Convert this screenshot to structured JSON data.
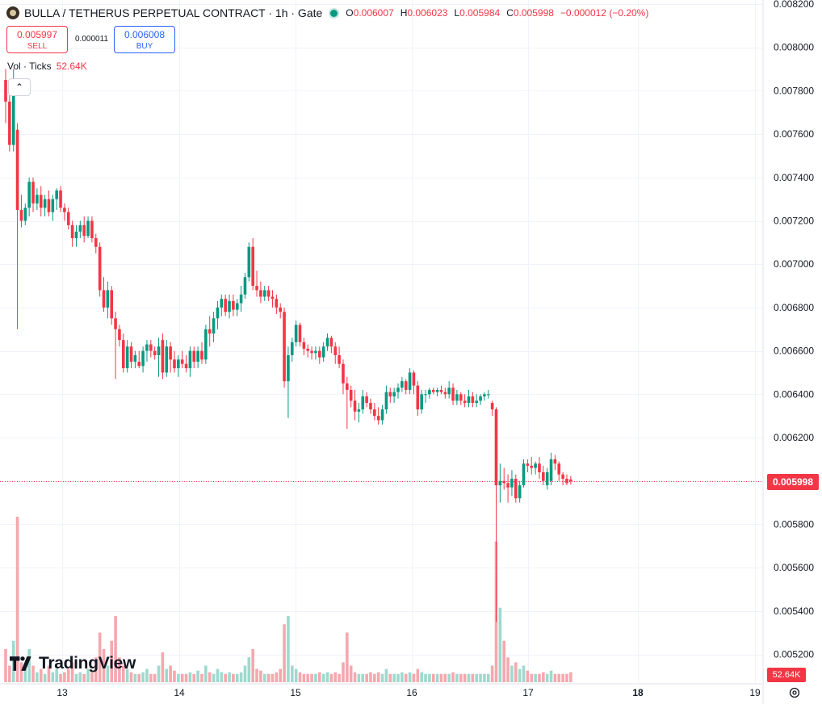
{
  "header": {
    "title": "BULLA / TETHERUS PERPETUAL CONTRACT · 1h · Gate",
    "ohlc": [
      {
        "key": "O",
        "value": "0.006007"
      },
      {
        "key": "H",
        "value": "0.006023"
      },
      {
        "key": "L",
        "value": "0.005984"
      },
      {
        "key": "C",
        "value": "0.005998"
      },
      {
        "key": "",
        "value": "−0.000012 (−0.20%)"
      }
    ]
  },
  "trade": {
    "sell_price": "0.005997",
    "sell_label": "SELL",
    "spread": "0.000011",
    "buy_price": "0.006008",
    "buy_label": "BUY"
  },
  "volume_legend": {
    "label": "Vol · Ticks",
    "value": "52.64K"
  },
  "branding": {
    "name": "TradingView"
  },
  "price_scale": {
    "last_price": "0.005998",
    "volume_last": "52.64K"
  },
  "colors": {
    "up": "#089981",
    "down": "#f23645",
    "vol_up": "#9ed9ce",
    "vol_down": "#f5a8ae",
    "grid": "#f0f3fa"
  },
  "chart_data": {
    "type": "candlestick",
    "x_labels": [
      "13",
      "14",
      "15",
      "16",
      "17",
      "18",
      "19"
    ],
    "y_ticks": [
      "0.008200",
      "0.008000",
      "0.007800",
      "0.007600",
      "0.007400",
      "0.007200",
      "0.007000",
      "0.006800",
      "0.006600",
      "0.006400",
      "0.006200",
      "0.006000",
      "0.005800",
      "0.005600",
      "0.005400",
      "0.005200"
    ],
    "ylim": [
      0.00516,
      0.0082
    ],
    "last_price": 0.005998,
    "grid": true,
    "candles": [
      {
        "o": 0.00785,
        "h": 0.0079,
        "l": 0.00765,
        "c": 0.00775,
        "v": 0.2
      },
      {
        "o": 0.00775,
        "h": 0.00782,
        "l": 0.00752,
        "c": 0.00755,
        "v": 0.1
      },
      {
        "o": 0.00755,
        "h": 0.0079,
        "l": 0.00752,
        "c": 0.00781,
        "v": 0.25
      },
      {
        "o": 0.00762,
        "h": 0.00765,
        "l": 0.0067,
        "c": 0.00725,
        "v": 1.0
      },
      {
        "o": 0.00725,
        "h": 0.00732,
        "l": 0.00717,
        "c": 0.0072,
        "v": 0.12
      },
      {
        "o": 0.0072,
        "h": 0.00728,
        "l": 0.00718,
        "c": 0.00726,
        "v": 0.08
      },
      {
        "o": 0.00726,
        "h": 0.0074,
        "l": 0.00722,
        "c": 0.00738,
        "v": 0.2
      },
      {
        "o": 0.00738,
        "h": 0.0074,
        "l": 0.00724,
        "c": 0.00728,
        "v": 0.1
      },
      {
        "o": 0.00728,
        "h": 0.00735,
        "l": 0.00725,
        "c": 0.00732,
        "v": 0.06
      },
      {
        "o": 0.00732,
        "h": 0.00736,
        "l": 0.00722,
        "c": 0.00726,
        "v": 0.08
      },
      {
        "o": 0.00726,
        "h": 0.00732,
        "l": 0.00722,
        "c": 0.0073,
        "v": 0.05
      },
      {
        "o": 0.0073,
        "h": 0.00734,
        "l": 0.00722,
        "c": 0.00724,
        "v": 0.1
      },
      {
        "o": 0.00724,
        "h": 0.00732,
        "l": 0.0072,
        "c": 0.0073,
        "v": 0.06
      },
      {
        "o": 0.0073,
        "h": 0.00735,
        "l": 0.00725,
        "c": 0.00734,
        "v": 0.08
      },
      {
        "o": 0.00734,
        "h": 0.00736,
        "l": 0.00724,
        "c": 0.00726,
        "v": 0.05
      },
      {
        "o": 0.00726,
        "h": 0.00728,
        "l": 0.0072,
        "c": 0.00724,
        "v": 0.06
      },
      {
        "o": 0.00724,
        "h": 0.00726,
        "l": 0.00716,
        "c": 0.00718,
        "v": 0.08
      },
      {
        "o": 0.00718,
        "h": 0.0072,
        "l": 0.00708,
        "c": 0.00712,
        "v": 0.12
      },
      {
        "o": 0.00712,
        "h": 0.00718,
        "l": 0.00708,
        "c": 0.00715,
        "v": 0.05
      },
      {
        "o": 0.00715,
        "h": 0.0072,
        "l": 0.00712,
        "c": 0.00718,
        "v": 0.06
      },
      {
        "o": 0.00718,
        "h": 0.00722,
        "l": 0.0071,
        "c": 0.00713,
        "v": 0.05
      },
      {
        "o": 0.00713,
        "h": 0.00722,
        "l": 0.00712,
        "c": 0.0072,
        "v": 0.08
      },
      {
        "o": 0.0072,
        "h": 0.00722,
        "l": 0.0071,
        "c": 0.00712,
        "v": 0.06
      },
      {
        "o": 0.00712,
        "h": 0.00714,
        "l": 0.00705,
        "c": 0.00708,
        "v": 0.15
      },
      {
        "o": 0.00708,
        "h": 0.0071,
        "l": 0.00685,
        "c": 0.00688,
        "v": 0.3
      },
      {
        "o": 0.00688,
        "h": 0.00694,
        "l": 0.00678,
        "c": 0.0068,
        "v": 0.2
      },
      {
        "o": 0.0068,
        "h": 0.00692,
        "l": 0.00675,
        "c": 0.00688,
        "v": 0.1
      },
      {
        "o": 0.00688,
        "h": 0.0069,
        "l": 0.00672,
        "c": 0.00675,
        "v": 0.25
      },
      {
        "o": 0.00675,
        "h": 0.00678,
        "l": 0.00647,
        "c": 0.0067,
        "v": 0.4
      },
      {
        "o": 0.0067,
        "h": 0.00672,
        "l": 0.00662,
        "c": 0.00665,
        "v": 0.15
      },
      {
        "o": 0.00665,
        "h": 0.00668,
        "l": 0.0065,
        "c": 0.00652,
        "v": 0.1
      },
      {
        "o": 0.00652,
        "h": 0.00665,
        "l": 0.0065,
        "c": 0.00662,
        "v": 0.08
      },
      {
        "o": 0.00662,
        "h": 0.00664,
        "l": 0.00652,
        "c": 0.00655,
        "v": 0.06
      },
      {
        "o": 0.00655,
        "h": 0.0066,
        "l": 0.00652,
        "c": 0.00658,
        "v": 0.05
      },
      {
        "o": 0.00655,
        "h": 0.0066,
        "l": 0.00652,
        "c": 0.00653,
        "v": 0.05
      },
      {
        "o": 0.00653,
        "h": 0.00662,
        "l": 0.0065,
        "c": 0.0066,
        "v": 0.06
      },
      {
        "o": 0.0066,
        "h": 0.00665,
        "l": 0.00655,
        "c": 0.00663,
        "v": 0.08
      },
      {
        "o": 0.00663,
        "h": 0.00665,
        "l": 0.00657,
        "c": 0.0066,
        "v": 0.05
      },
      {
        "o": 0.0066,
        "h": 0.00662,
        "l": 0.00656,
        "c": 0.00658,
        "v": 0.05
      },
      {
        "o": 0.00658,
        "h": 0.00666,
        "l": 0.00648,
        "c": 0.00662,
        "v": 0.1
      },
      {
        "o": 0.00665,
        "h": 0.00668,
        "l": 0.00647,
        "c": 0.0065,
        "v": 0.18
      },
      {
        "o": 0.0065,
        "h": 0.00665,
        "l": 0.00648,
        "c": 0.00662,
        "v": 0.08
      },
      {
        "o": 0.00662,
        "h": 0.00664,
        "l": 0.0065,
        "c": 0.00656,
        "v": 0.1
      },
      {
        "o": 0.00656,
        "h": 0.0066,
        "l": 0.0065,
        "c": 0.00652,
        "v": 0.07
      },
      {
        "o": 0.00652,
        "h": 0.00658,
        "l": 0.00648,
        "c": 0.00656,
        "v": 0.05
      },
      {
        "o": 0.00656,
        "h": 0.0066,
        "l": 0.00652,
        "c": 0.00654,
        "v": 0.05
      },
      {
        "o": 0.00654,
        "h": 0.00658,
        "l": 0.0065,
        "c": 0.00652,
        "v": 0.05
      },
      {
        "o": 0.00652,
        "h": 0.00662,
        "l": 0.00648,
        "c": 0.0066,
        "v": 0.06
      },
      {
        "o": 0.0066,
        "h": 0.00662,
        "l": 0.00652,
        "c": 0.00655,
        "v": 0.05
      },
      {
        "o": 0.00655,
        "h": 0.00662,
        "l": 0.00652,
        "c": 0.0066,
        "v": 0.07
      },
      {
        "o": 0.0066,
        "h": 0.00664,
        "l": 0.00654,
        "c": 0.00656,
        "v": 0.05
      },
      {
        "o": 0.00656,
        "h": 0.00672,
        "l": 0.00654,
        "c": 0.0067,
        "v": 0.1
      },
      {
        "o": 0.0067,
        "h": 0.00676,
        "l": 0.00662,
        "c": 0.00668,
        "v": 0.06
      },
      {
        "o": 0.00668,
        "h": 0.00678,
        "l": 0.00664,
        "c": 0.00675,
        "v": 0.05
      },
      {
        "o": 0.00675,
        "h": 0.00683,
        "l": 0.0067,
        "c": 0.0068,
        "v": 0.08
      },
      {
        "o": 0.0068,
        "h": 0.00686,
        "l": 0.00676,
        "c": 0.00684,
        "v": 0.06
      },
      {
        "o": 0.00684,
        "h": 0.00686,
        "l": 0.00676,
        "c": 0.00678,
        "v": 0.05
      },
      {
        "o": 0.00678,
        "h": 0.00686,
        "l": 0.00675,
        "c": 0.00683,
        "v": 0.06
      },
      {
        "o": 0.00683,
        "h": 0.00686,
        "l": 0.00676,
        "c": 0.00679,
        "v": 0.05
      },
      {
        "o": 0.00679,
        "h": 0.00684,
        "l": 0.00676,
        "c": 0.00682,
        "v": 0.05
      },
      {
        "o": 0.00682,
        "h": 0.0069,
        "l": 0.00678,
        "c": 0.00686,
        "v": 0.06
      },
      {
        "o": 0.00686,
        "h": 0.00696,
        "l": 0.00684,
        "c": 0.00694,
        "v": 0.1
      },
      {
        "o": 0.00694,
        "h": 0.0071,
        "l": 0.00692,
        "c": 0.00708,
        "v": 0.15
      },
      {
        "o": 0.00708,
        "h": 0.00712,
        "l": 0.00688,
        "c": 0.0069,
        "v": 0.2
      },
      {
        "o": 0.0069,
        "h": 0.00697,
        "l": 0.00685,
        "c": 0.00688,
        "v": 0.08
      },
      {
        "o": 0.00688,
        "h": 0.00692,
        "l": 0.00682,
        "c": 0.00685,
        "v": 0.07
      },
      {
        "o": 0.00685,
        "h": 0.0069,
        "l": 0.00683,
        "c": 0.00688,
        "v": 0.05
      },
      {
        "o": 0.00688,
        "h": 0.0069,
        "l": 0.00683,
        "c": 0.00685,
        "v": 0.05
      },
      {
        "o": 0.00685,
        "h": 0.00688,
        "l": 0.0068,
        "c": 0.00684,
        "v": 0.05
      },
      {
        "o": 0.00684,
        "h": 0.00686,
        "l": 0.00677,
        "c": 0.0068,
        "v": 0.06
      },
      {
        "o": 0.0068,
        "h": 0.00682,
        "l": 0.00675,
        "c": 0.00678,
        "v": 0.08
      },
      {
        "o": 0.00678,
        "h": 0.0068,
        "l": 0.00643,
        "c": 0.00646,
        "v": 0.35
      },
      {
        "o": 0.00646,
        "h": 0.00662,
        "l": 0.00629,
        "c": 0.00658,
        "v": 0.4
      },
      {
        "o": 0.00658,
        "h": 0.00666,
        "l": 0.00655,
        "c": 0.00664,
        "v": 0.1
      },
      {
        "o": 0.00664,
        "h": 0.00674,
        "l": 0.00662,
        "c": 0.00672,
        "v": 0.08
      },
      {
        "o": 0.00672,
        "h": 0.00673,
        "l": 0.00662,
        "c": 0.00664,
        "v": 0.06
      },
      {
        "o": 0.00664,
        "h": 0.00666,
        "l": 0.00658,
        "c": 0.00661,
        "v": 0.05
      },
      {
        "o": 0.00661,
        "h": 0.00663,
        "l": 0.00657,
        "c": 0.0066,
        "v": 0.05
      },
      {
        "o": 0.0066,
        "h": 0.00662,
        "l": 0.00656,
        "c": 0.00659,
        "v": 0.05
      },
      {
        "o": 0.00659,
        "h": 0.00662,
        "l": 0.00656,
        "c": 0.0066,
        "v": 0.05
      },
      {
        "o": 0.0066,
        "h": 0.00662,
        "l": 0.00654,
        "c": 0.00657,
        "v": 0.06
      },
      {
        "o": 0.00657,
        "h": 0.00664,
        "l": 0.00655,
        "c": 0.00662,
        "v": 0.05
      },
      {
        "o": 0.00662,
        "h": 0.00668,
        "l": 0.0066,
        "c": 0.00666,
        "v": 0.06
      },
      {
        "o": 0.00666,
        "h": 0.00667,
        "l": 0.00659,
        "c": 0.00662,
        "v": 0.05
      },
      {
        "o": 0.00662,
        "h": 0.00664,
        "l": 0.00654,
        "c": 0.00658,
        "v": 0.06
      },
      {
        "o": 0.00658,
        "h": 0.00662,
        "l": 0.00652,
        "c": 0.00654,
        "v": 0.05
      },
      {
        "o": 0.00654,
        "h": 0.00656,
        "l": 0.0064,
        "c": 0.00645,
        "v": 0.12
      },
      {
        "o": 0.00645,
        "h": 0.00648,
        "l": 0.00624,
        "c": 0.00642,
        "v": 0.3
      },
      {
        "o": 0.00642,
        "h": 0.00644,
        "l": 0.00634,
        "c": 0.00637,
        "v": 0.1
      },
      {
        "o": 0.00637,
        "h": 0.00642,
        "l": 0.00628,
        "c": 0.00632,
        "v": 0.06
      },
      {
        "o": 0.00632,
        "h": 0.00636,
        "l": 0.00627,
        "c": 0.00633,
        "v": 0.05
      },
      {
        "o": 0.00633,
        "h": 0.00642,
        "l": 0.00631,
        "c": 0.00639,
        "v": 0.05
      },
      {
        "o": 0.00639,
        "h": 0.00641,
        "l": 0.00634,
        "c": 0.00636,
        "v": 0.05
      },
      {
        "o": 0.00636,
        "h": 0.00638,
        "l": 0.00631,
        "c": 0.00633,
        "v": 0.06
      },
      {
        "o": 0.00633,
        "h": 0.00636,
        "l": 0.00628,
        "c": 0.0063,
        "v": 0.05
      },
      {
        "o": 0.0063,
        "h": 0.00634,
        "l": 0.00626,
        "c": 0.00628,
        "v": 0.06
      },
      {
        "o": 0.00628,
        "h": 0.00635,
        "l": 0.00626,
        "c": 0.00633,
        "v": 0.05
      },
      {
        "o": 0.00633,
        "h": 0.00644,
        "l": 0.00631,
        "c": 0.00641,
        "v": 0.08
      },
      {
        "o": 0.00641,
        "h": 0.00643,
        "l": 0.00636,
        "c": 0.00639,
        "v": 0.05
      },
      {
        "o": 0.00639,
        "h": 0.00643,
        "l": 0.00636,
        "c": 0.00641,
        "v": 0.05
      },
      {
        "o": 0.00641,
        "h": 0.00645,
        "l": 0.00638,
        "c": 0.00643,
        "v": 0.05
      },
      {
        "o": 0.00643,
        "h": 0.00648,
        "l": 0.00641,
        "c": 0.00646,
        "v": 0.06
      },
      {
        "o": 0.00646,
        "h": 0.00647,
        "l": 0.0064,
        "c": 0.00642,
        "v": 0.05
      },
      {
        "o": 0.00642,
        "h": 0.00652,
        "l": 0.0064,
        "c": 0.0065,
        "v": 0.06
      },
      {
        "o": 0.0065,
        "h": 0.00651,
        "l": 0.0064,
        "c": 0.00644,
        "v": 0.05
      },
      {
        "o": 0.00644,
        "h": 0.00646,
        "l": 0.0063,
        "c": 0.00633,
        "v": 0.08
      },
      {
        "o": 0.00633,
        "h": 0.00642,
        "l": 0.00631,
        "c": 0.0064,
        "v": 0.06
      },
      {
        "o": 0.0064,
        "h": 0.00642,
        "l": 0.00636,
        "c": 0.0064,
        "v": 0.05
      },
      {
        "o": 0.0064,
        "h": 0.00643,
        "l": 0.00638,
        "c": 0.00642,
        "v": 0.05
      },
      {
        "o": 0.00642,
        "h": 0.00643,
        "l": 0.0064,
        "c": 0.00641,
        "v": 0.05
      },
      {
        "o": 0.00641,
        "h": 0.00643,
        "l": 0.00639,
        "c": 0.00642,
        "v": 0.05
      },
      {
        "o": 0.00642,
        "h": 0.00644,
        "l": 0.0064,
        "c": 0.00641,
        "v": 0.05
      },
      {
        "o": 0.00641,
        "h": 0.00643,
        "l": 0.00638,
        "c": 0.0064,
        "v": 0.05
      },
      {
        "o": 0.0064,
        "h": 0.00646,
        "l": 0.00638,
        "c": 0.00643,
        "v": 0.05
      },
      {
        "o": 0.00643,
        "h": 0.00645,
        "l": 0.00635,
        "c": 0.00637,
        "v": 0.06
      },
      {
        "o": 0.00637,
        "h": 0.00642,
        "l": 0.00635,
        "c": 0.0064,
        "v": 0.05
      },
      {
        "o": 0.0064,
        "h": 0.00641,
        "l": 0.00635,
        "c": 0.00637,
        "v": 0.05
      },
      {
        "o": 0.00637,
        "h": 0.0064,
        "l": 0.00634,
        "c": 0.00636,
        "v": 0.05
      },
      {
        "o": 0.00636,
        "h": 0.00642,
        "l": 0.00634,
        "c": 0.00639,
        "v": 0.05
      },
      {
        "o": 0.00639,
        "h": 0.00641,
        "l": 0.00634,
        "c": 0.00636,
        "v": 0.05
      },
      {
        "o": 0.00636,
        "h": 0.0064,
        "l": 0.00634,
        "c": 0.00637,
        "v": 0.05
      },
      {
        "o": 0.00637,
        "h": 0.0064,
        "l": 0.00635,
        "c": 0.00639,
        "v": 0.05
      },
      {
        "o": 0.00639,
        "h": 0.00641,
        "l": 0.00637,
        "c": 0.0064,
        "v": 0.05
      },
      {
        "o": 0.0064,
        "h": 0.00642,
        "l": 0.00638,
        "c": 0.0064,
        "v": 0.05
      },
      {
        "o": 0.00636,
        "h": 0.00637,
        "l": 0.0063,
        "c": 0.00633,
        "v": 0.1
      },
      {
        "o": 0.00633,
        "h": 0.00634,
        "l": 0.00535,
        "c": 0.00598,
        "v": 0.85
      },
      {
        "o": 0.00598,
        "h": 0.00608,
        "l": 0.0059,
        "c": 0.006,
        "v": 0.45
      },
      {
        "o": 0.006,
        "h": 0.00606,
        "l": 0.00596,
        "c": 0.00599,
        "v": 0.25
      },
      {
        "o": 0.00599,
        "h": 0.00603,
        "l": 0.0059,
        "c": 0.00597,
        "v": 0.15
      },
      {
        "o": 0.00597,
        "h": 0.00605,
        "l": 0.00593,
        "c": 0.00601,
        "v": 0.1
      },
      {
        "o": 0.00601,
        "h": 0.00603,
        "l": 0.0059,
        "c": 0.00592,
        "v": 0.12
      },
      {
        "o": 0.00592,
        "h": 0.006,
        "l": 0.0059,
        "c": 0.00598,
        "v": 0.08
      },
      {
        "o": 0.00598,
        "h": 0.0061,
        "l": 0.00597,
        "c": 0.00608,
        "v": 0.1
      },
      {
        "o": 0.00608,
        "h": 0.0061,
        "l": 0.00604,
        "c": 0.00607,
        "v": 0.07
      },
      {
        "o": 0.00607,
        "h": 0.00611,
        "l": 0.00603,
        "c": 0.00606,
        "v": 0.05
      },
      {
        "o": 0.00606,
        "h": 0.00609,
        "l": 0.00603,
        "c": 0.00608,
        "v": 0.05
      },
      {
        "o": 0.00608,
        "h": 0.00611,
        "l": 0.00601,
        "c": 0.00604,
        "v": 0.05
      },
      {
        "o": 0.00604,
        "h": 0.00607,
        "l": 0.00598,
        "c": 0.006,
        "v": 0.06
      },
      {
        "o": 0.00598,
        "h": 0.00606,
        "l": 0.00596,
        "c": 0.00604,
        "v": 0.05
      },
      {
        "o": 0.006,
        "h": 0.00613,
        "l": 0.00598,
        "c": 0.0061,
        "v": 0.07
      },
      {
        "o": 0.0061,
        "h": 0.00612,
        "l": 0.00605,
        "c": 0.00608,
        "v": 0.05
      },
      {
        "o": 0.00608,
        "h": 0.00609,
        "l": 0.006,
        "c": 0.00603,
        "v": 0.05
      },
      {
        "o": 0.00603,
        "h": 0.00604,
        "l": 0.00598,
        "c": 0.00601,
        "v": 0.05
      },
      {
        "o": 0.00601,
        "h": 0.00603,
        "l": 0.00598,
        "c": 0.00599,
        "v": 0.05
      },
      {
        "o": 0.006007,
        "h": 0.006023,
        "l": 0.005984,
        "c": 0.005998,
        "v": 0.06
      }
    ]
  }
}
